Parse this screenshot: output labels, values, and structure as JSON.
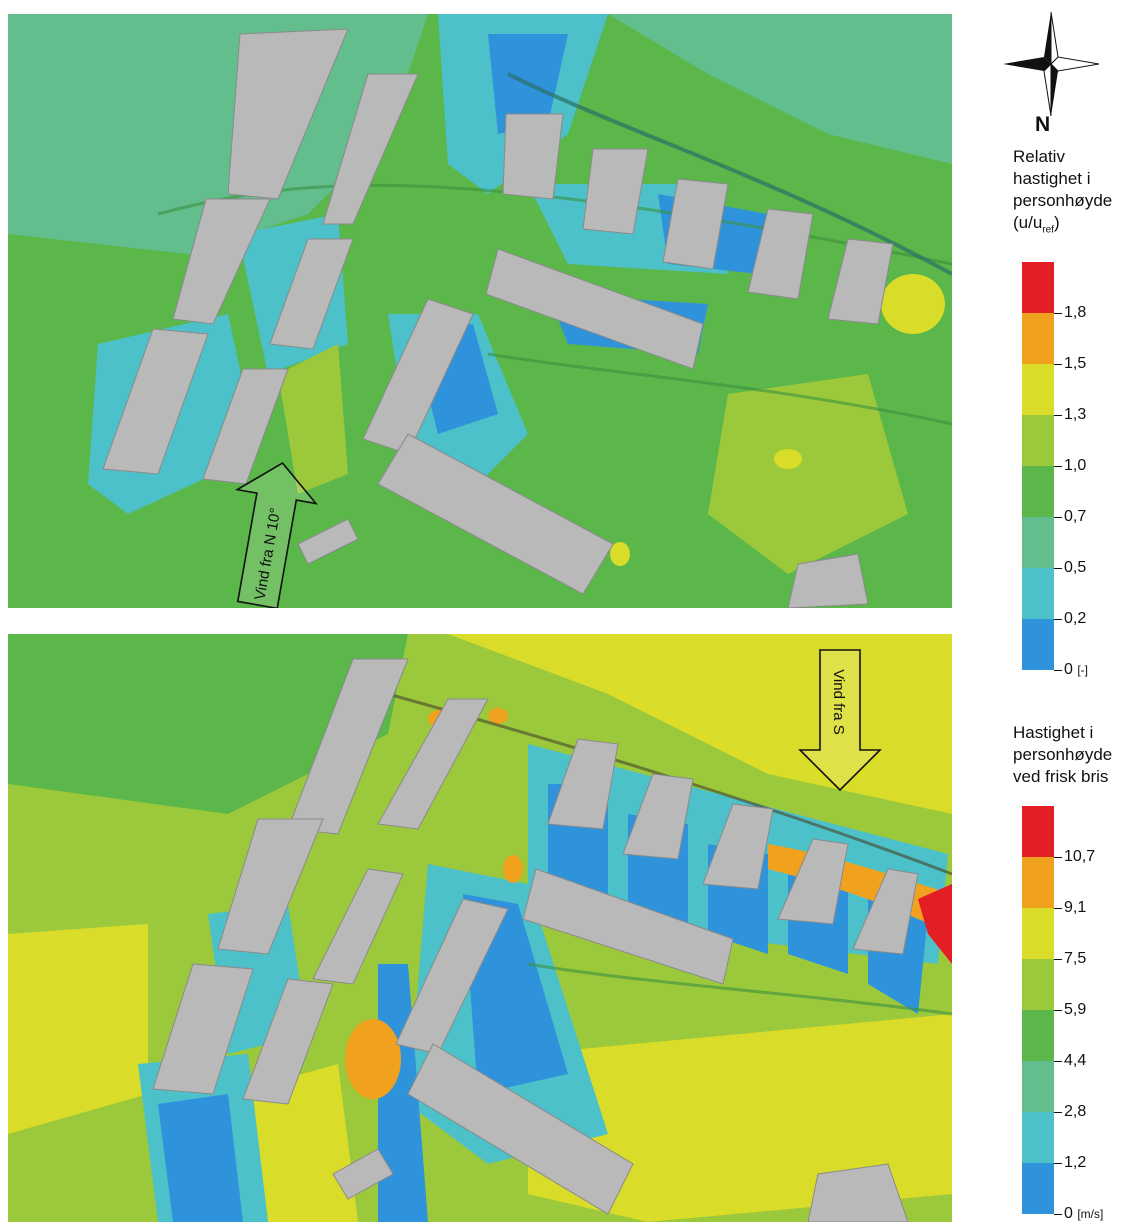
{
  "compass": {
    "icon": "compass-rose-icon",
    "north_label": "N"
  },
  "panels": [
    {
      "id": "top",
      "wind_label": "Vind fra N 10°",
      "wind_direction": "from north 10°"
    },
    {
      "id": "bottom",
      "wind_label": "Vind fra S",
      "wind_direction": "from south"
    }
  ],
  "legend_relative": {
    "title_lines": [
      "Relativ",
      "hastighet i",
      "personhøyde"
    ],
    "formula": {
      "prefix": "(u/u",
      "subscript": "ref",
      "suffix": ")"
    },
    "ticks": [
      "1,8",
      "1,5",
      "1,3",
      "1,0",
      "0,7",
      "0,5",
      "0,2"
    ],
    "zero_label": "0",
    "unit": "[-]",
    "colors": [
      "#e31e24",
      "#f0a21e",
      "#d9dc28",
      "#9cc93c",
      "#5bb749",
      "#62be8c",
      "#4cc1c9",
      "#2f93db"
    ]
  },
  "legend_absolute": {
    "title_lines": [
      "Hastighet i",
      "personhøyde",
      "ved frisk bris"
    ],
    "ticks": [
      "10,7",
      "9,1",
      "7,5",
      "5,9",
      "4,4",
      "2,8",
      "1,2"
    ],
    "zero_label": "0",
    "unit": "[m/s]",
    "colors": [
      "#e31e24",
      "#f0a21e",
      "#d9dc28",
      "#9cc93c",
      "#5bb749",
      "#62be8c",
      "#4cc1c9",
      "#2f93db"
    ]
  }
}
